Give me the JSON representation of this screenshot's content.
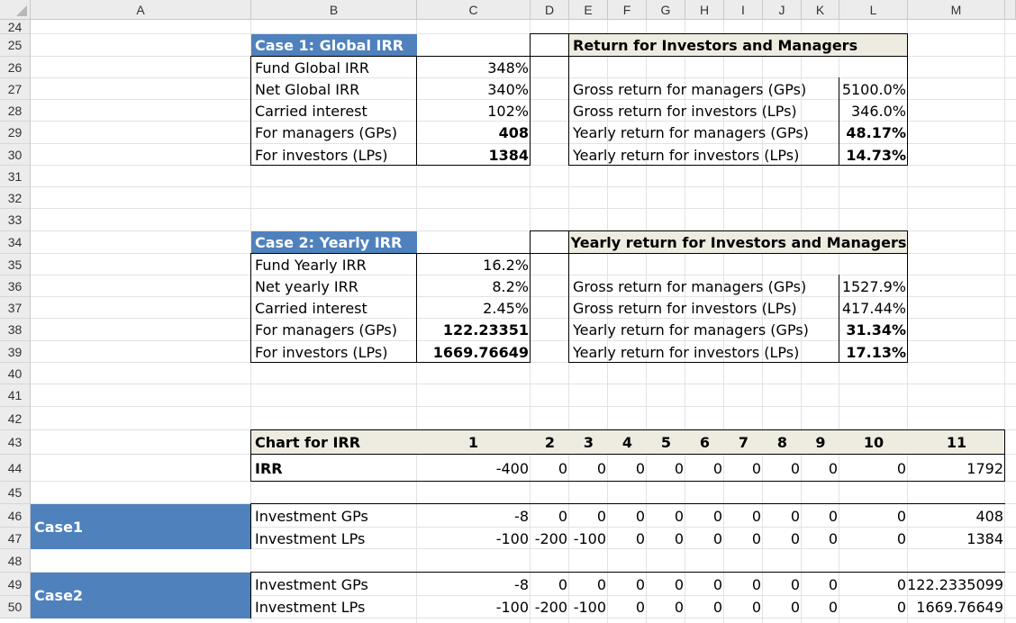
{
  "columns": [
    "A",
    "B",
    "C",
    "D",
    "E",
    "F",
    "G",
    "H",
    "I",
    "J",
    "K",
    "L",
    "M"
  ],
  "rows": [
    "24",
    "25",
    "26",
    "27",
    "28",
    "29",
    "30",
    "31",
    "32",
    "33",
    "34",
    "35",
    "36",
    "37",
    "38",
    "39",
    "40",
    "41",
    "42",
    "43",
    "44",
    "45",
    "46",
    "47",
    "48",
    "49",
    "50"
  ],
  "case1": {
    "title": "Case 1: Global IRR",
    "labels": [
      "Fund Global IRR",
      "Net Global IRR",
      "Carried interest",
      "For managers (GPs)",
      "For investors (LPs)"
    ],
    "values": [
      "348%",
      "340%",
      "102%",
      "408",
      "1384"
    ]
  },
  "returns1": {
    "title": "Return for Investors and Managers",
    "labels": [
      "Gross return for managers (GPs)",
      "Gross return for investors (LPs)",
      "Yearly return for managers (GPs)",
      "Yearly return for investors (LPs)"
    ],
    "values": [
      "5100.0%",
      "346.0%",
      "48.17%",
      "14.73%"
    ]
  },
  "case2": {
    "title": "Case 2: Yearly IRR",
    "labels": [
      "Fund Yearly IRR",
      "Net yearly IRR",
      "Carried interest",
      "For managers (GPs)",
      "For investors (LPs)"
    ],
    "values": [
      "16.2%",
      "8.2%",
      "2.45%",
      "122.23351",
      "1669.76649"
    ]
  },
  "returns2": {
    "title": "Yearly return for Investors and Managers",
    "labels": [
      "Gross return for managers (GPs)",
      "Gross return for investors (LPs)",
      "Yearly return for managers (GPs)",
      "Yearly return for investors (LPs)"
    ],
    "values": [
      "1527.9%",
      "417.44%",
      "31.34%",
      "17.13%"
    ]
  },
  "chart_table": {
    "header_label": "Chart for IRR",
    "years": [
      "1",
      "2",
      "3",
      "4",
      "5",
      "6",
      "7",
      "8",
      "9",
      "10",
      "11"
    ],
    "irr_label": "IRR",
    "irr_values": [
      "-400",
      "0",
      "0",
      "0",
      "0",
      "0",
      "0",
      "0",
      "0",
      "0",
      "1792"
    ]
  },
  "case1_invest": {
    "label": "Case1",
    "rows": [
      {
        "label": "Investment GPs",
        "values": [
          "-8",
          "0",
          "0",
          "0",
          "0",
          "0",
          "0",
          "0",
          "0",
          "0",
          "408"
        ]
      },
      {
        "label": "Investment LPs",
        "values": [
          "-100",
          "-200",
          "-100",
          "0",
          "0",
          "0",
          "0",
          "0",
          "0",
          "0",
          "1384"
        ]
      }
    ]
  },
  "case2_invest": {
    "label": "Case2",
    "rows": [
      {
        "label": "Investment GPs",
        "values": [
          "-8",
          "0",
          "0",
          "0",
          "0",
          "0",
          "0",
          "0",
          "0",
          "0",
          "122.2335099"
        ]
      },
      {
        "label": "Investment LPs",
        "values": [
          "-100",
          "-200",
          "-100",
          "0",
          "0",
          "0",
          "0",
          "0",
          "0",
          "0",
          "1669.76649"
        ]
      }
    ]
  },
  "colors": {
    "header_blue": "#4f81bd",
    "beige": "#eeece1",
    "grid": "#e2e2e2"
  }
}
